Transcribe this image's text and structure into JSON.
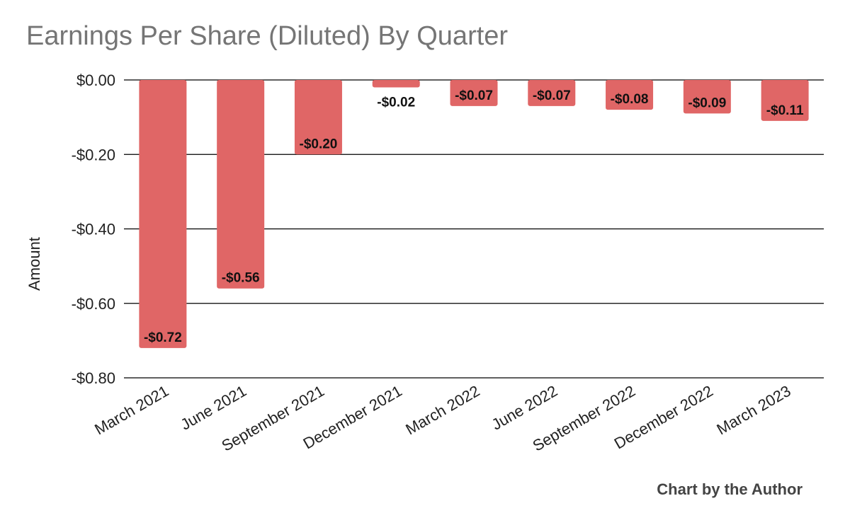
{
  "chart_data": {
    "type": "bar",
    "title": "Earnings Per Share (Diluted) By Quarter",
    "xlabel": "",
    "ylabel": "Amount",
    "categories": [
      "March 2021",
      "June 2021",
      "September 2021",
      "December 2021",
      "March 2022",
      "June 2022",
      "September 2022",
      "December 2022",
      "March 2023"
    ],
    "series": [
      {
        "values": [
          -0.72,
          -0.56,
          -0.2,
          -0.02,
          -0.07,
          -0.07,
          -0.08,
          -0.09,
          -0.11
        ],
        "data_labels": [
          "-$0.72",
          "-$0.56",
          "-$0.20",
          "-$0.02",
          "-$0.07",
          "-$0.07",
          "-$0.08",
          "-$0.09",
          "-$0.11"
        ],
        "color": "#e06666"
      }
    ],
    "ylim": [
      -0.8,
      0
    ],
    "yticks": [
      0,
      -0.2,
      -0.4,
      -0.6,
      -0.8
    ],
    "ytick_labels": [
      "$0.00",
      "-$0.20",
      "-$0.40",
      "-$0.60",
      "-$0.80"
    ],
    "grid": true,
    "legend": "none"
  },
  "credit": "Chart by the Author",
  "colors": {
    "bar": "#e06666",
    "title": "#757575",
    "grid": "#000000",
    "label": "#222222"
  }
}
